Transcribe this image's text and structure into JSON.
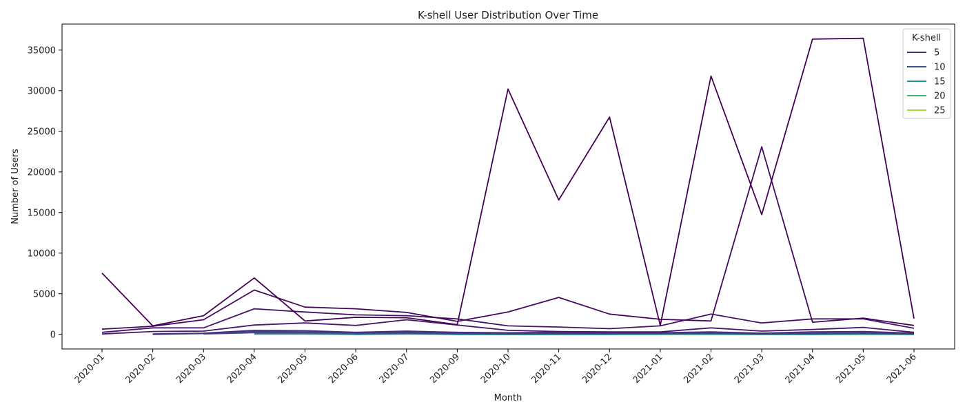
{
  "chart_data": {
    "type": "line",
    "title": "K-shell User Distribution Over Time",
    "xlabel": "Month",
    "ylabel": "Number of Users",
    "ylim": [
      -1800,
      38200
    ],
    "yticks": [
      0,
      5000,
      10000,
      15000,
      20000,
      25000,
      30000,
      35000
    ],
    "grid": false,
    "legend": {
      "title": "K-shell",
      "placement": "top-right"
    },
    "categories": [
      "2020-01",
      "2020-02",
      "2020-03",
      "2020-04",
      "2020-05",
      "2020-06",
      "2020-07",
      "2020-09",
      "2020-10",
      "2020-11",
      "2020-12",
      "2021-01",
      "2021-02",
      "2021-03",
      "2021-04",
      "2021-05",
      "2021-06"
    ],
    "series": [
      {
        "name": "",
        "color": "#440154",
        "values": [
          7550,
          1050,
          2300,
          6950,
          1650,
          2100,
          2050,
          1200,
          30200,
          16550,
          26750,
          1100,
          31800,
          14750,
          36350,
          36450,
          1950
        ]
      },
      {
        "name": "",
        "color": "#46085c",
        "values": [
          650,
          1000,
          1800,
          5450,
          3350,
          3150,
          2700,
          1600,
          2750,
          4550,
          2500,
          1850,
          1650,
          23100,
          1500,
          2000,
          1100
        ]
      },
      {
        "name": "",
        "color": "#471365",
        "values": [
          250,
          800,
          800,
          3150,
          2750,
          2400,
          2300,
          1900,
          1050,
          900,
          700,
          1050,
          2500,
          1400,
          1900,
          1900,
          750
        ]
      },
      {
        "name": "",
        "color": "#48186a",
        "values": [
          50,
          350,
          400,
          1150,
          1400,
          1100,
          1800,
          1150,
          500,
          350,
          300,
          300,
          800,
          400,
          600,
          850,
          250
        ]
      },
      {
        "name": "5",
        "color": "#472d7b",
        "values": [
          null,
          50,
          150,
          500,
          450,
          250,
          400,
          250,
          200,
          250,
          200,
          200,
          300,
          150,
          300,
          350,
          150
        ]
      },
      {
        "name": "",
        "color": "#423f85",
        "values": [
          null,
          0,
          100,
          350,
          300,
          200,
          250,
          150,
          100,
          150,
          150,
          150,
          200,
          100,
          150,
          200,
          100
        ]
      },
      {
        "name": "10",
        "color": "#3b528b",
        "values": [
          null,
          null,
          50,
          200,
          200,
          150,
          150,
          100,
          50,
          100,
          100,
          100,
          150,
          50,
          100,
          150,
          50
        ]
      },
      {
        "name": "",
        "color": "#2c728e",
        "values": [
          null,
          null,
          null,
          100,
          100,
          50,
          100,
          50,
          50,
          50,
          50,
          50,
          100,
          50,
          50,
          100,
          50
        ]
      },
      {
        "name": "15",
        "color": "#21918c",
        "values": [
          null,
          null,
          null,
          50,
          50,
          0,
          50,
          0,
          0,
          0,
          0,
          50,
          50,
          0,
          0,
          50,
          0
        ]
      },
      {
        "name": "20",
        "color": "#3ebb70",
        "values": [
          null,
          null,
          null,
          null,
          null,
          0,
          100,
          0,
          0,
          0,
          0,
          0,
          0,
          0,
          0,
          0,
          0
        ]
      },
      {
        "name": "25",
        "color": "#a0da39",
        "values": [
          null,
          null,
          null,
          null,
          null,
          null,
          150,
          50,
          0,
          0,
          null,
          null,
          null,
          null,
          null,
          null,
          null
        ]
      }
    ]
  }
}
